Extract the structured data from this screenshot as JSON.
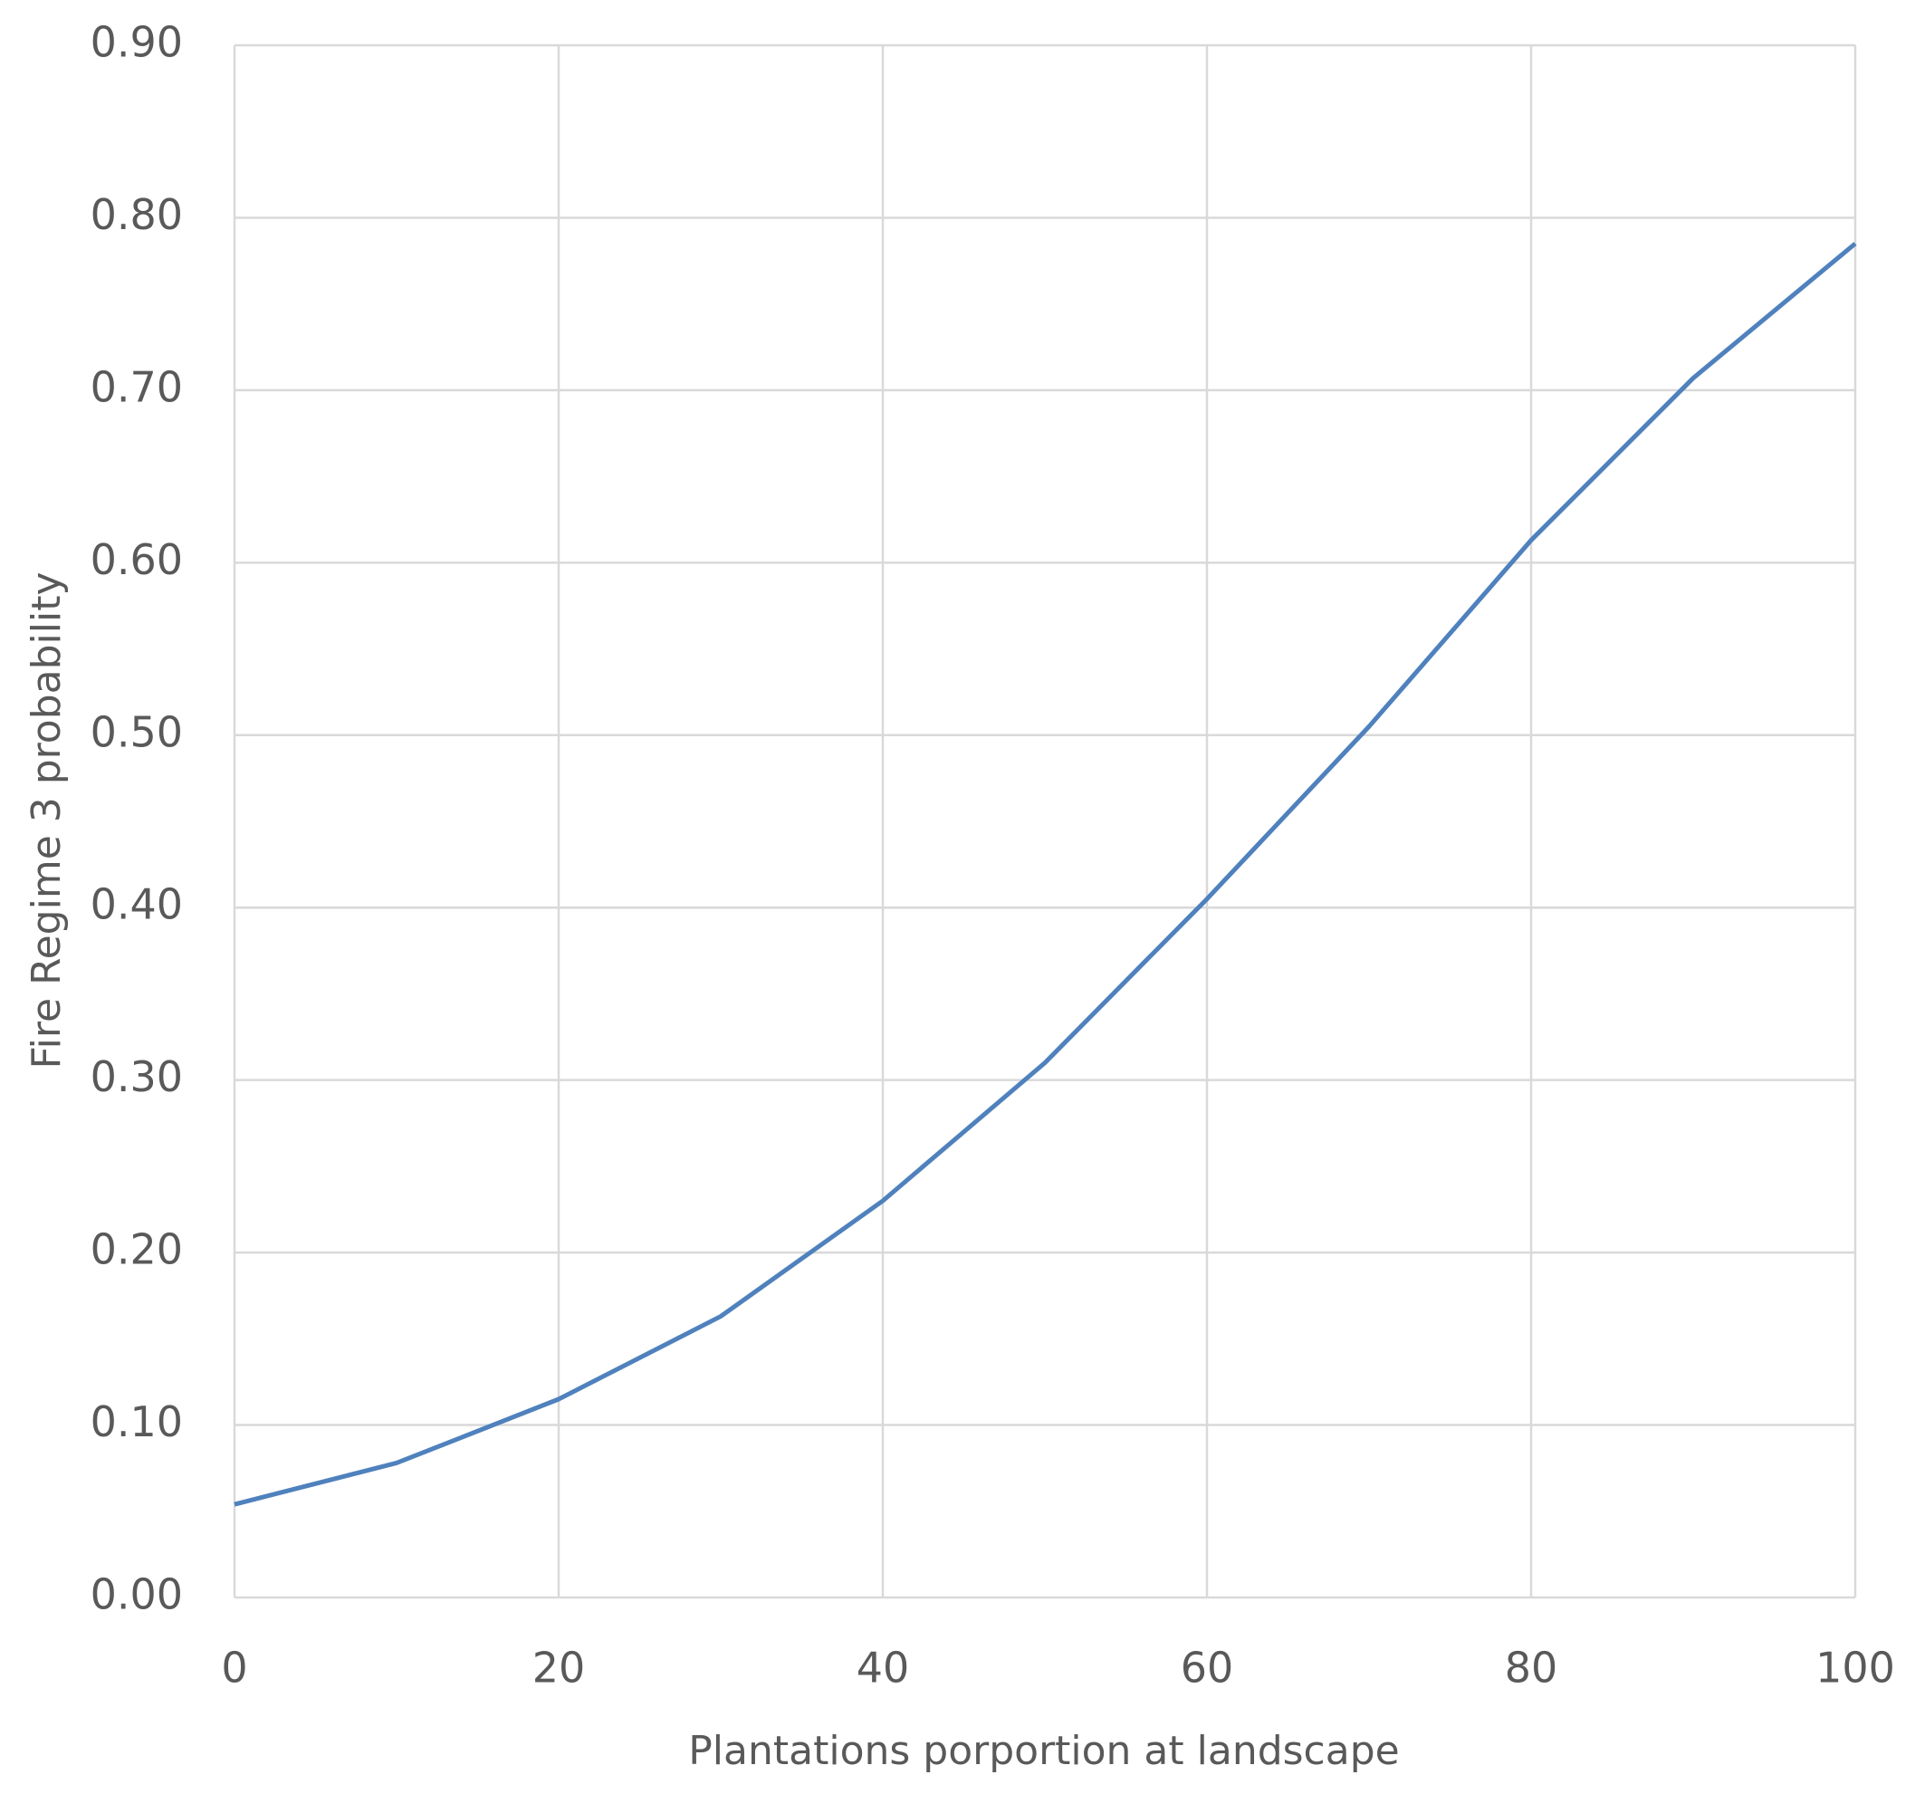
{
  "chart_data": {
    "type": "line",
    "x_label": "Plantations porportion at landscape",
    "y_label": "Fire Regime 3 probability",
    "x": [
      0,
      10,
      20,
      30,
      40,
      50,
      60,
      70,
      80,
      90,
      100
    ],
    "series": [
      {
        "color": "#4f81bd",
        "values": [
          0.054,
          0.078,
          0.115,
          0.163,
          0.23,
          0.31,
          0.405,
          0.505,
          0.613,
          0.707,
          0.785
        ]
      }
    ],
    "xlim": [
      0,
      100
    ],
    "xticks": [
      0,
      20,
      40,
      60,
      80,
      100
    ],
    "ylim": [
      0,
      0.9
    ],
    "yticks": [
      {
        "value": 0,
        "label": "0.00"
      },
      {
        "value": 0.1,
        "label": "0.10"
      },
      {
        "value": 0.2,
        "label": "0.20"
      },
      {
        "value": 0.3,
        "label": "0.30"
      },
      {
        "value": 0.4,
        "label": "0.40"
      },
      {
        "value": 0.5,
        "label": "0.50"
      },
      {
        "value": 0.6,
        "label": "0.60"
      },
      {
        "value": 0.7,
        "label": "0.70"
      },
      {
        "value": 0.8,
        "label": "0.80"
      },
      {
        "value": 0.9,
        "label": "0.90"
      }
    ],
    "grid": true
  }
}
